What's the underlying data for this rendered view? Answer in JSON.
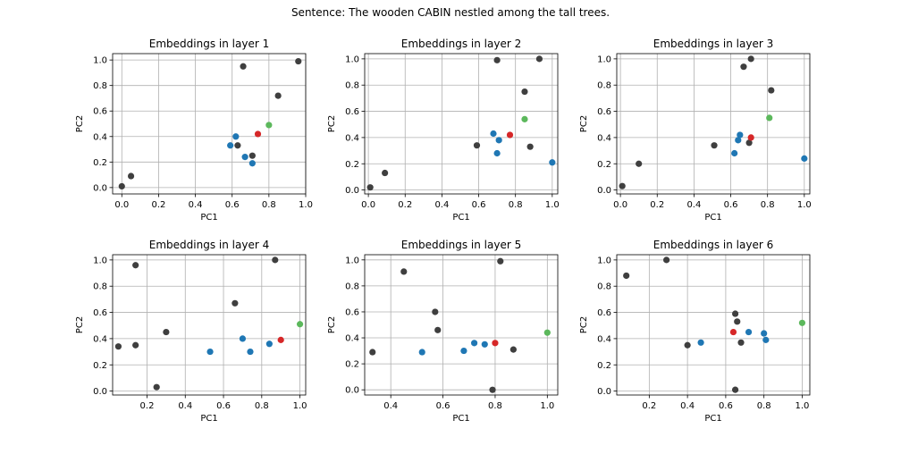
{
  "suptitle": "Sentence: The wooden CABIN nestled among the tall trees.",
  "colors": {
    "other": "#3f3f3f",
    "blue": "#1f77b4",
    "red": "#d62728",
    "green": "#5cb85c",
    "grid": "#b0b0b0"
  },
  "chart_data": [
    {
      "type": "scatter",
      "title": "Embeddings in layer 1",
      "xlabel": "PC1",
      "ylabel": "PC2",
      "xlim": [
        -0.05,
        1.0
      ],
      "ylim": [
        -0.05,
        1.05
      ],
      "xticks": [
        0.0,
        0.2,
        0.4,
        0.6,
        0.8,
        1.0
      ],
      "xtick_labels": [
        "0.0",
        "0.2",
        "0.4",
        "0.6",
        "0.8",
        "1.0"
      ],
      "yticks": [
        0.0,
        0.2,
        0.4,
        0.6,
        0.8,
        1.0
      ],
      "ytick_labels": [
        "0.0",
        "0.2",
        "0.4",
        "0.6",
        "0.8",
        "1.0"
      ],
      "grid": true,
      "points": [
        {
          "x": 0.0,
          "y": 0.01,
          "c": "other"
        },
        {
          "x": 0.05,
          "y": 0.09,
          "c": "other"
        },
        {
          "x": 0.66,
          "y": 0.95,
          "c": "other"
        },
        {
          "x": 0.96,
          "y": 0.99,
          "c": "other"
        },
        {
          "x": 0.85,
          "y": 0.72,
          "c": "other"
        },
        {
          "x": 0.63,
          "y": 0.33,
          "c": "other"
        },
        {
          "x": 0.71,
          "y": 0.25,
          "c": "other"
        },
        {
          "x": 0.59,
          "y": 0.33,
          "c": "blue"
        },
        {
          "x": 0.62,
          "y": 0.4,
          "c": "blue"
        },
        {
          "x": 0.67,
          "y": 0.24,
          "c": "blue"
        },
        {
          "x": 0.71,
          "y": 0.19,
          "c": "blue"
        },
        {
          "x": 0.74,
          "y": 0.42,
          "c": "red"
        },
        {
          "x": 0.8,
          "y": 0.49,
          "c": "green"
        }
      ]
    },
    {
      "type": "scatter",
      "title": "Embeddings in layer 2",
      "xlabel": "PC1",
      "ylabel": "PC2",
      "xlim": [
        -0.02,
        1.03
      ],
      "ylim": [
        -0.03,
        1.04
      ],
      "xticks": [
        0.0,
        0.2,
        0.4,
        0.6,
        0.8,
        1.0
      ],
      "xtick_labels": [
        "0.0",
        "0.2",
        "0.4",
        "0.6",
        "0.8",
        "1.0"
      ],
      "yticks": [
        0.0,
        0.2,
        0.4,
        0.6,
        0.8,
        1.0
      ],
      "ytick_labels": [
        "0.0",
        "0.2",
        "0.4",
        "0.6",
        "0.8",
        "1.0"
      ],
      "grid": true,
      "points": [
        {
          "x": 0.01,
          "y": 0.02,
          "c": "other"
        },
        {
          "x": 0.09,
          "y": 0.13,
          "c": "other"
        },
        {
          "x": 0.7,
          "y": 0.99,
          "c": "other"
        },
        {
          "x": 0.93,
          "y": 1.0,
          "c": "other"
        },
        {
          "x": 0.85,
          "y": 0.75,
          "c": "other"
        },
        {
          "x": 0.59,
          "y": 0.34,
          "c": "other"
        },
        {
          "x": 0.88,
          "y": 0.33,
          "c": "other"
        },
        {
          "x": 0.68,
          "y": 0.43,
          "c": "blue"
        },
        {
          "x": 0.71,
          "y": 0.38,
          "c": "blue"
        },
        {
          "x": 0.7,
          "y": 0.28,
          "c": "blue"
        },
        {
          "x": 1.0,
          "y": 0.21,
          "c": "blue"
        },
        {
          "x": 0.77,
          "y": 0.42,
          "c": "red"
        },
        {
          "x": 0.85,
          "y": 0.54,
          "c": "green"
        }
      ]
    },
    {
      "type": "scatter",
      "title": "Embeddings in layer 3",
      "xlabel": "PC1",
      "ylabel": "PC2",
      "xlim": [
        -0.02,
        1.03
      ],
      "ylim": [
        -0.03,
        1.04
      ],
      "xticks": [
        0.0,
        0.2,
        0.4,
        0.6,
        0.8,
        1.0
      ],
      "xtick_labels": [
        "0.0",
        "0.2",
        "0.4",
        "0.6",
        "0.8",
        "1.0"
      ],
      "yticks": [
        0.0,
        0.2,
        0.4,
        0.6,
        0.8,
        1.0
      ],
      "ytick_labels": [
        "0.0",
        "0.2",
        "0.4",
        "0.6",
        "0.8",
        "1.0"
      ],
      "grid": true,
      "points": [
        {
          "x": 0.01,
          "y": 0.03,
          "c": "other"
        },
        {
          "x": 0.1,
          "y": 0.2,
          "c": "other"
        },
        {
          "x": 0.67,
          "y": 0.94,
          "c": "other"
        },
        {
          "x": 0.71,
          "y": 1.0,
          "c": "other"
        },
        {
          "x": 0.82,
          "y": 0.76,
          "c": "other"
        },
        {
          "x": 0.51,
          "y": 0.34,
          "c": "other"
        },
        {
          "x": 0.7,
          "y": 0.36,
          "c": "other"
        },
        {
          "x": 0.62,
          "y": 0.28,
          "c": "blue"
        },
        {
          "x": 0.64,
          "y": 0.38,
          "c": "blue"
        },
        {
          "x": 0.65,
          "y": 0.42,
          "c": "blue"
        },
        {
          "x": 1.0,
          "y": 0.24,
          "c": "blue"
        },
        {
          "x": 0.71,
          "y": 0.4,
          "c": "red"
        },
        {
          "x": 0.81,
          "y": 0.55,
          "c": "green"
        }
      ]
    },
    {
      "type": "scatter",
      "title": "Embeddings in layer 4",
      "xlabel": "PC1",
      "ylabel": "PC2",
      "xlim": [
        0.02,
        1.03
      ],
      "ylim": [
        -0.03,
        1.04
      ],
      "xticks": [
        0.2,
        0.4,
        0.6,
        0.8,
        1.0
      ],
      "xtick_labels": [
        "0.2",
        "0.4",
        "0.6",
        "0.8",
        "1.0"
      ],
      "yticks": [
        0.0,
        0.2,
        0.4,
        0.6,
        0.8,
        1.0
      ],
      "ytick_labels": [
        "0.0",
        "0.2",
        "0.4",
        "0.6",
        "0.8",
        "1.0"
      ],
      "grid": true,
      "points": [
        {
          "x": 0.05,
          "y": 0.34,
          "c": "other"
        },
        {
          "x": 0.14,
          "y": 0.96,
          "c": "other"
        },
        {
          "x": 0.14,
          "y": 0.35,
          "c": "other"
        },
        {
          "x": 0.3,
          "y": 0.45,
          "c": "other"
        },
        {
          "x": 0.25,
          "y": 0.03,
          "c": "other"
        },
        {
          "x": 0.66,
          "y": 0.67,
          "c": "other"
        },
        {
          "x": 0.87,
          "y": 1.0,
          "c": "other"
        },
        {
          "x": 0.53,
          "y": 0.3,
          "c": "blue"
        },
        {
          "x": 0.7,
          "y": 0.4,
          "c": "blue"
        },
        {
          "x": 0.74,
          "y": 0.3,
          "c": "blue"
        },
        {
          "x": 0.84,
          "y": 0.36,
          "c": "blue"
        },
        {
          "x": 0.9,
          "y": 0.39,
          "c": "red"
        },
        {
          "x": 1.0,
          "y": 0.51,
          "c": "green"
        }
      ]
    },
    {
      "type": "scatter",
      "title": "Embeddings in layer 5",
      "xlabel": "PC1",
      "ylabel": "PC2",
      "xlim": [
        0.3,
        1.04
      ],
      "ylim": [
        -0.04,
        1.04
      ],
      "xticks": [
        0.4,
        0.6,
        0.8,
        1.0
      ],
      "xtick_labels": [
        "0.4",
        "0.6",
        "0.8",
        "1.0"
      ],
      "yticks": [
        0.0,
        0.2,
        0.4,
        0.6,
        0.8,
        1.0
      ],
      "ytick_labels": [
        "0.0",
        "0.2",
        "0.4",
        "0.6",
        "0.8",
        "1.0"
      ],
      "grid": true,
      "points": [
        {
          "x": 0.33,
          "y": 0.29,
          "c": "other"
        },
        {
          "x": 0.45,
          "y": 0.91,
          "c": "other"
        },
        {
          "x": 0.57,
          "y": 0.6,
          "c": "other"
        },
        {
          "x": 0.58,
          "y": 0.46,
          "c": "other"
        },
        {
          "x": 0.82,
          "y": 0.99,
          "c": "other"
        },
        {
          "x": 0.87,
          "y": 0.31,
          "c": "other"
        },
        {
          "x": 0.79,
          "y": 0.0,
          "c": "other"
        },
        {
          "x": 0.52,
          "y": 0.29,
          "c": "blue"
        },
        {
          "x": 0.68,
          "y": 0.3,
          "c": "blue"
        },
        {
          "x": 0.72,
          "y": 0.36,
          "c": "blue"
        },
        {
          "x": 0.76,
          "y": 0.35,
          "c": "blue"
        },
        {
          "x": 0.8,
          "y": 0.36,
          "c": "red"
        },
        {
          "x": 1.0,
          "y": 0.44,
          "c": "green"
        }
      ]
    },
    {
      "type": "scatter",
      "title": "Embeddings in layer 6",
      "xlabel": "PC1",
      "ylabel": "PC2",
      "xlim": [
        0.03,
        1.04
      ],
      "ylim": [
        -0.03,
        1.04
      ],
      "xticks": [
        0.2,
        0.4,
        0.6,
        0.8,
        1.0
      ],
      "xtick_labels": [
        "0.2",
        "0.4",
        "0.6",
        "0.8",
        "1.0"
      ],
      "yticks": [
        0.0,
        0.2,
        0.4,
        0.6,
        0.8,
        1.0
      ],
      "ytick_labels": [
        "0.0",
        "0.2",
        "0.4",
        "0.6",
        "0.8",
        "1.0"
      ],
      "grid": true,
      "points": [
        {
          "x": 0.08,
          "y": 0.88,
          "c": "other"
        },
        {
          "x": 0.29,
          "y": 1.0,
          "c": "other"
        },
        {
          "x": 0.4,
          "y": 0.35,
          "c": "other"
        },
        {
          "x": 0.65,
          "y": 0.59,
          "c": "other"
        },
        {
          "x": 0.66,
          "y": 0.53,
          "c": "other"
        },
        {
          "x": 0.68,
          "y": 0.37,
          "c": "other"
        },
        {
          "x": 0.65,
          "y": 0.01,
          "c": "other"
        },
        {
          "x": 0.47,
          "y": 0.37,
          "c": "blue"
        },
        {
          "x": 0.72,
          "y": 0.45,
          "c": "blue"
        },
        {
          "x": 0.8,
          "y": 0.44,
          "c": "blue"
        },
        {
          "x": 0.81,
          "y": 0.39,
          "c": "blue"
        },
        {
          "x": 0.64,
          "y": 0.45,
          "c": "red"
        },
        {
          "x": 1.0,
          "y": 0.52,
          "c": "green"
        }
      ]
    }
  ]
}
